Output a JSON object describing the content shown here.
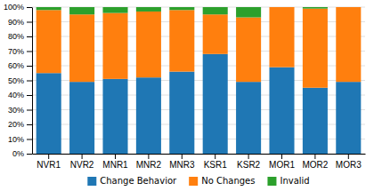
{
  "chart_data": {
    "type": "bar",
    "stacked": true,
    "categories": [
      "NVR1",
      "NVR2",
      "MNR1",
      "MNR2",
      "MNR3",
      "KSR1",
      "KSR2",
      "MOR1",
      "MOR2",
      "MOR3"
    ],
    "series": [
      {
        "name": "Change Behavior",
        "values": [
          55,
          49,
          51,
          52,
          56,
          68,
          49,
          59,
          45,
          49
        ]
      },
      {
        "name": "No Changes",
        "values": [
          43,
          46,
          45,
          45,
          42,
          27,
          44,
          41,
          54,
          51
        ]
      },
      {
        "name": "Invalid",
        "values": [
          2,
          5,
          4,
          3,
          2,
          5,
          7,
          0,
          1,
          0
        ]
      }
    ],
    "ylim": [
      0,
      100
    ],
    "yticks": [
      {
        "value": 0,
        "label": "0%"
      },
      {
        "value": 10,
        "label": "10%"
      },
      {
        "value": 20,
        "label": "20%"
      },
      {
        "value": 30,
        "label": "30%"
      },
      {
        "value": 40,
        "label": "40%"
      },
      {
        "value": 50,
        "label": "50%"
      },
      {
        "value": 60,
        "label": "60%"
      },
      {
        "value": 70,
        "label": "70%"
      },
      {
        "value": 80,
        "label": "80%"
      },
      {
        "value": 90,
        "label": "90%"
      },
      {
        "value": 100,
        "label": "100%"
      }
    ],
    "grid": true,
    "legend": "bottom"
  }
}
